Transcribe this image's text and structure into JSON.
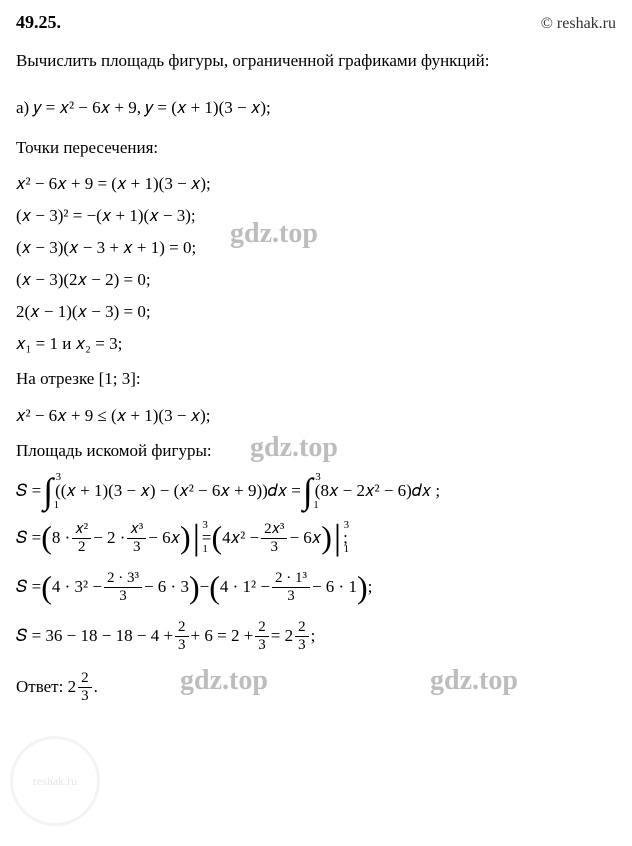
{
  "header": {
    "problem_number": "49.25.",
    "copyright": "© reshak.ru"
  },
  "task": "Вычислить площадь фигуры, ограниченной графиками функций:",
  "part_a": "a) 𝑦 = 𝑥² − 6𝑥 + 9,   𝑦 = (𝑥 + 1)(3 − 𝑥);",
  "intersection_label": "Точки пересечения:",
  "eq1": "𝑥² − 6𝑥 + 9 = (𝑥 + 1)(3 − 𝑥);",
  "eq2": "(𝑥 − 3)² = −(𝑥 + 1)(𝑥 − 3);",
  "eq3": "(𝑥 − 3)(𝑥 − 3 + 𝑥 + 1) = 0;",
  "eq4": "(𝑥 − 3)(2𝑥 − 2) = 0;",
  "eq5": "2(𝑥 − 1)(𝑥 − 3) = 0;",
  "roots": "𝑥₁ = 1  и  𝑥₂ = 3;",
  "segment": "На отрезке [1; 3]:",
  "ineq": "𝑥² − 6𝑥 + 9 ≤ (𝑥 + 1)(3 − 𝑥);",
  "area_label": "Площадь искомой фигуры:",
  "integral1_lhs": "𝑆 = ",
  "integral1_body": "((𝑥 + 1)(3 − 𝑥) − (𝑥² − 6𝑥 + 9))𝑑𝑥 = ",
  "integral1_body2": "(8𝑥 − 2𝑥² − 6)𝑑𝑥 ;",
  "s2_pre": "𝑆 = ",
  "s2_mid": " = ",
  "s2_end": ";",
  "frac_x2": {
    "num": "𝑥²",
    "den": "2"
  },
  "frac_x3": {
    "num": "𝑥³",
    "den": "3"
  },
  "frac_2x3": {
    "num": "2𝑥³",
    "den": "3"
  },
  "s3_pre": "𝑆 = ",
  "frac_233": {
    "num": "2 · 3³",
    "den": "3"
  },
  "frac_213": {
    "num": "2 · 1³",
    "den": "3"
  },
  "s4_pre": "𝑆 = 36 − 18 − 18 − 4 + ",
  "frac_23a": {
    "num": "2",
    "den": "3"
  },
  "s4_mid1": " + 6 = 2 + ",
  "s4_mid2": " = 2",
  "s4_end": ";",
  "answer_label": "Ответ:  2",
  "answer_end": ".",
  "watermark_text": "gdz.top",
  "circle_text": "reshak.ru",
  "int_bounds": {
    "upper": "3",
    "lower": "1"
  },
  "eval_bounds": {
    "upper": "3",
    "lower": "1"
  },
  "colors": {
    "text": "#000000",
    "watermark": "#a8a8a8",
    "background": "#ffffff"
  }
}
